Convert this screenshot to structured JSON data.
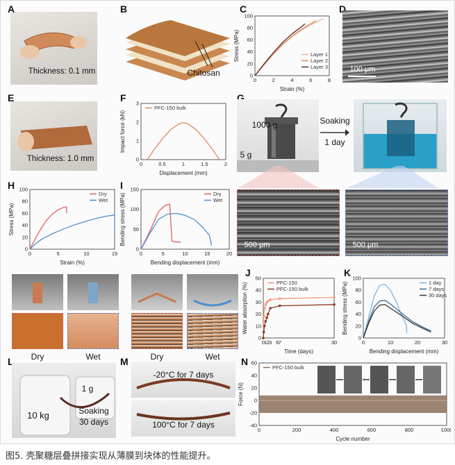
{
  "caption": "图5. 壳聚糖层叠拼接实现从薄膜到块体的性能提升。",
  "panels": {
    "A": {
      "label": "A",
      "text": "Thickness: 0.1 mm"
    },
    "B": {
      "label": "B",
      "text": "Chitosan"
    },
    "C": {
      "label": "C"
    },
    "D": {
      "label": "D",
      "scale": "100 μm"
    },
    "E": {
      "label": "E",
      "text": "Thickness: 1.0 mm"
    },
    "F": {
      "label": "F"
    },
    "G": {
      "label": "G",
      "weight1": "1000 g",
      "weight2": "5 g",
      "arrow1": "Soaking",
      "arrow2": "1 day",
      "scale1": "500 μm",
      "scale2": "500 μm"
    },
    "H": {
      "label": "H"
    },
    "I": {
      "label": "I"
    },
    "J": {
      "label": "J"
    },
    "K": {
      "label": "K"
    },
    "L": {
      "label": "L",
      "w1": "10 kg",
      "w2": "1 g",
      "t1": "Soaking",
      "t2": "30 days"
    },
    "M": {
      "label": "M",
      "t1": "-20°C for 7 days",
      "t2": "100°C for 7 days"
    },
    "N": {
      "label": "N"
    },
    "dry_wet_H": {
      "dry": "Dry",
      "wet": "Wet"
    },
    "dry_wet_I": {
      "dry": "Dry",
      "wet": "Wet"
    }
  },
  "colors": {
    "layer1": "#f0b8a0",
    "layer2": "#e08a60",
    "layer3": "#5a2a22",
    "dry": "#e06060",
    "wet": "#4f8fd0",
    "pfc150": "#f39a7a",
    "pfcbulk": "#8a3a20",
    "day1": "#7ab7e0",
    "day7": "#3a6a9a",
    "day30": "#333333",
    "nforce": "#8b6f5a"
  },
  "chart_data": [
    {
      "id": "C",
      "type": "line",
      "xlabel": "Strain (%)",
      "ylabel": "Stress (MPa)",
      "xlim": [
        0,
        8
      ],
      "ylim": [
        0,
        100
      ],
      "xticks": [
        0,
        2,
        4,
        6,
        8
      ],
      "yticks": [
        0,
        20,
        40,
        60,
        80,
        100
      ],
      "series": [
        {
          "name": "Layer 1",
          "x": [
            0,
            1,
            2,
            3,
            4,
            5,
            6,
            7,
            7.4
          ],
          "y": [
            0,
            18,
            36,
            52,
            65,
            76,
            85,
            93,
            95
          ]
        },
        {
          "name": "Layer 2",
          "x": [
            0,
            1,
            2,
            3,
            4,
            5,
            6,
            6.6
          ],
          "y": [
            0,
            19,
            37,
            53,
            66,
            78,
            87,
            92
          ]
        },
        {
          "name": "Layer 3",
          "x": [
            0,
            1,
            2,
            3,
            4,
            5,
            5.4
          ],
          "y": [
            0,
            20,
            39,
            56,
            70,
            82,
            87
          ]
        }
      ],
      "legend": "bottom-right"
    },
    {
      "id": "F",
      "type": "line",
      "xlabel": "Displacement (mm)",
      "ylabel": "Impact force (kN)",
      "xlim": [
        0,
        2.0
      ],
      "ylim": [
        0,
        3
      ],
      "xticks": [
        0.0,
        0.5,
        1.0,
        1.5,
        2.0
      ],
      "yticks": [
        0,
        1,
        2,
        3
      ],
      "series": [
        {
          "name": "PFC-150 bulk",
          "x": [
            0.15,
            0.3,
            0.5,
            0.7,
            0.9,
            1.0,
            1.1,
            1.3,
            1.5,
            1.7,
            1.85
          ],
          "y": [
            0,
            0.5,
            1.1,
            1.6,
            1.92,
            1.97,
            1.92,
            1.6,
            1.1,
            0.5,
            0
          ]
        }
      ],
      "legend": "top-left"
    },
    {
      "id": "H",
      "type": "line",
      "xlabel": "Strain (%)",
      "ylabel": "Stress (MPa)",
      "xlim": [
        0,
        15
      ],
      "ylim": [
        0,
        100
      ],
      "xticks": [
        0,
        5,
        10,
        15
      ],
      "yticks": [
        0,
        20,
        40,
        60,
        80,
        100
      ],
      "series": [
        {
          "name": "Dry",
          "x": [
            0,
            1,
            2,
            3,
            4,
            5,
            6,
            6.5,
            6.5
          ],
          "y": [
            0,
            18,
            35,
            49,
            59,
            66,
            70,
            71,
            60
          ]
        },
        {
          "name": "Wet",
          "x": [
            0,
            1,
            2,
            4,
            6,
            8,
            10,
            12,
            14,
            15,
            15
          ],
          "y": [
            0,
            9,
            16,
            26,
            34,
            41,
            47,
            52,
            56,
            57,
            30
          ]
        }
      ],
      "legend": "top-right"
    },
    {
      "id": "I",
      "type": "line",
      "xlabel": "Bending displacement (mm)",
      "ylabel": "Bending stress (MPa)",
      "xlim": [
        0,
        20
      ],
      "ylim": [
        0,
        150
      ],
      "xticks": [
        0,
        5,
        10,
        15,
        20
      ],
      "yticks": [
        0,
        50,
        100,
        150
      ],
      "series": [
        {
          "name": "Dry",
          "x": [
            0,
            2,
            4,
            5.5,
            6.5,
            6.8,
            7,
            8,
            9
          ],
          "y": [
            0,
            45,
            95,
            110,
            113,
            60,
            20,
            18,
            18
          ]
        },
        {
          "name": "Wet",
          "x": [
            0,
            2,
            4,
            6,
            8,
            10,
            12,
            14,
            15.5,
            16
          ],
          "y": [
            0,
            40,
            75,
            88,
            90,
            85,
            75,
            55,
            35,
            10
          ]
        }
      ],
      "legend": "top-right"
    },
    {
      "id": "J",
      "type": "line",
      "xlabel": "Time (days)",
      "ylabel": "Water absorption (%)",
      "xlim": [
        0,
        30
      ],
      "ylim": [
        0,
        50
      ],
      "xticks": [
        0,
        1,
        2,
        3,
        6,
        7,
        30
      ],
      "yticks": [
        0,
        10,
        20,
        30,
        40,
        50
      ],
      "series": [
        {
          "name": "PFC-150",
          "x": [
            0,
            0.2,
            0.5,
            1,
            1.5,
            2,
            3,
            7,
            30
          ],
          "y": [
            0,
            18,
            25,
            28,
            30,
            31,
            32,
            33,
            34
          ]
        },
        {
          "name": "PFC-150 bulk",
          "x": [
            0,
            0.2,
            0.5,
            1,
            1.5,
            2,
            3,
            7,
            30
          ],
          "y": [
            0,
            5,
            10,
            14,
            17,
            20,
            25,
            27,
            28
          ]
        }
      ],
      "legend": "top-left"
    },
    {
      "id": "K",
      "type": "line",
      "xlabel": "Bending displacement (mm)",
      "ylabel": "Bending stress (MPa)",
      "xlim": [
        0,
        30
      ],
      "ylim": [
        0,
        100
      ],
      "xticks": [
        0,
        10,
        20,
        30
      ],
      "yticks": [
        0,
        20,
        40,
        60,
        80,
        100
      ],
      "series": [
        {
          "name": "1 day",
          "x": [
            0,
            2,
            4,
            6,
            8,
            10,
            12,
            14,
            16,
            16
          ],
          "y": [
            0,
            35,
            70,
            88,
            90,
            80,
            62,
            40,
            20,
            8
          ]
        },
        {
          "name": "7 days",
          "x": [
            0,
            2,
            4,
            6,
            8,
            10,
            14,
            18,
            22,
            25
          ],
          "y": [
            0,
            28,
            52,
            62,
            63,
            57,
            42,
            28,
            18,
            12
          ]
        },
        {
          "name": "30 days",
          "x": [
            0,
            2,
            4,
            6,
            8,
            10,
            14,
            18,
            22,
            25
          ],
          "y": [
            0,
            25,
            45,
            55,
            56,
            50,
            38,
            25,
            16,
            10
          ]
        }
      ],
      "legend": "top-right"
    },
    {
      "id": "N",
      "type": "area",
      "xlabel": "Cycle number",
      "ylabel": "Force (N)",
      "xlim": [
        0,
        1000
      ],
      "ylim": [
        -40,
        60
      ],
      "xticks": [
        0,
        200,
        400,
        600,
        800,
        1000
      ],
      "yticks": [
        -40,
        -20,
        0,
        20,
        40,
        60
      ],
      "series": [
        {
          "name": "PFC-150 bulk",
          "upper": 8,
          "lower": -20
        }
      ],
      "legend": "top-left"
    }
  ]
}
